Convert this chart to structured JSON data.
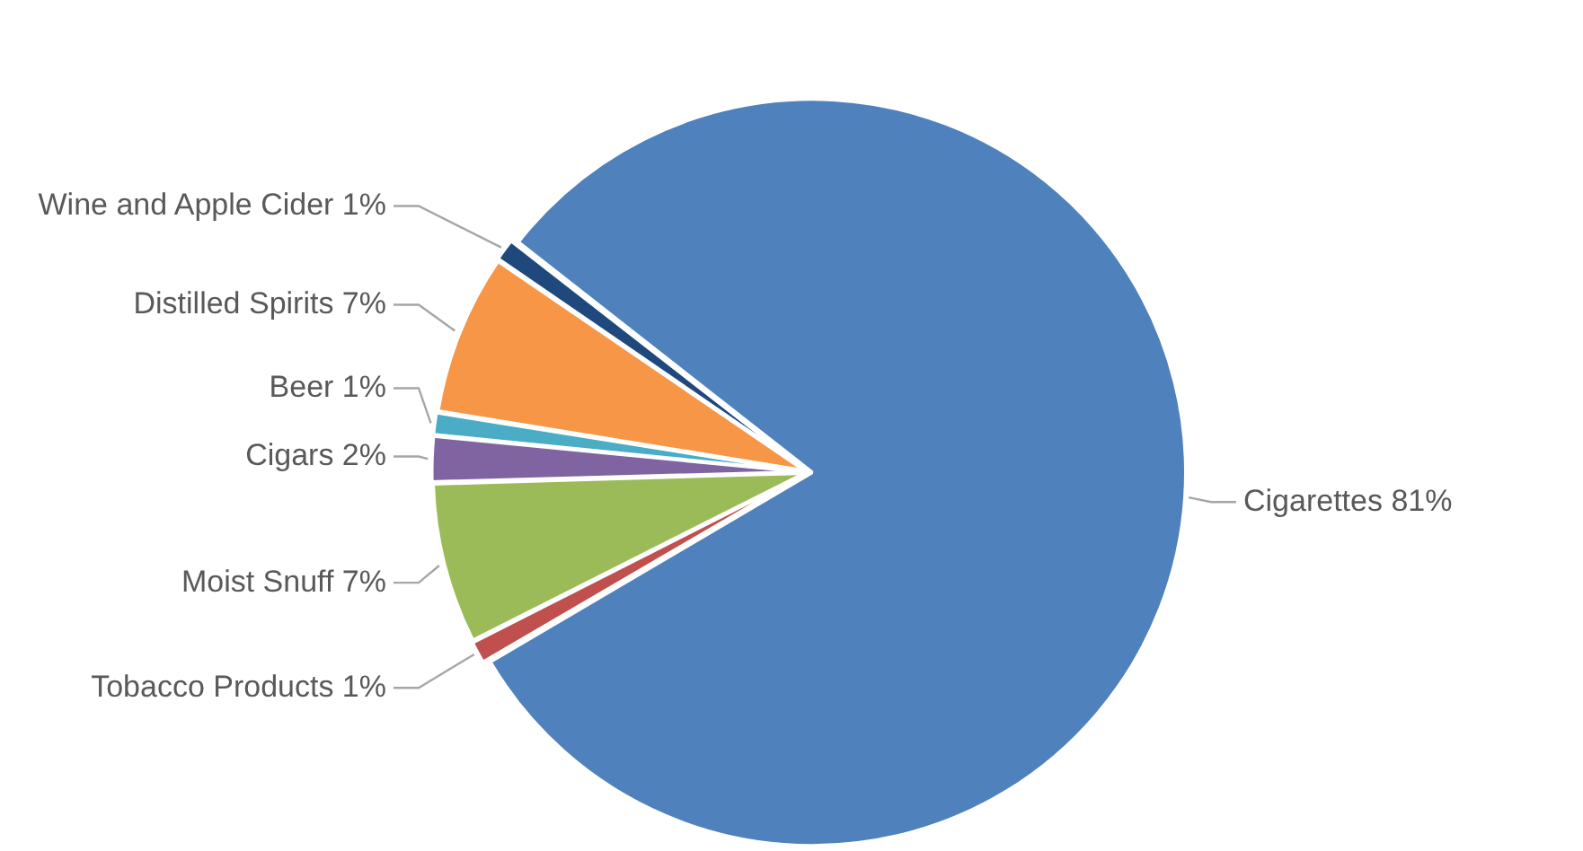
{
  "chart_data": {
    "type": "pie",
    "categories": [
      "Cigarettes",
      "Tobacco Products",
      "Moist Snuff",
      "Cigars",
      "Beer",
      "Distilled Spirits",
      "Wine and Apple Cider"
    ],
    "values": [
      81,
      1,
      7,
      2,
      1,
      7,
      1
    ],
    "value_labels": [
      "81%",
      "1%",
      "7%",
      "2%",
      "1%",
      "7%",
      "1%"
    ],
    "colors": [
      "#4f81bd",
      "#c0504d",
      "#9bbb59",
      "#8064a2",
      "#4bacc6",
      "#f79646",
      "#1f497d"
    ],
    "legend": false
  }
}
